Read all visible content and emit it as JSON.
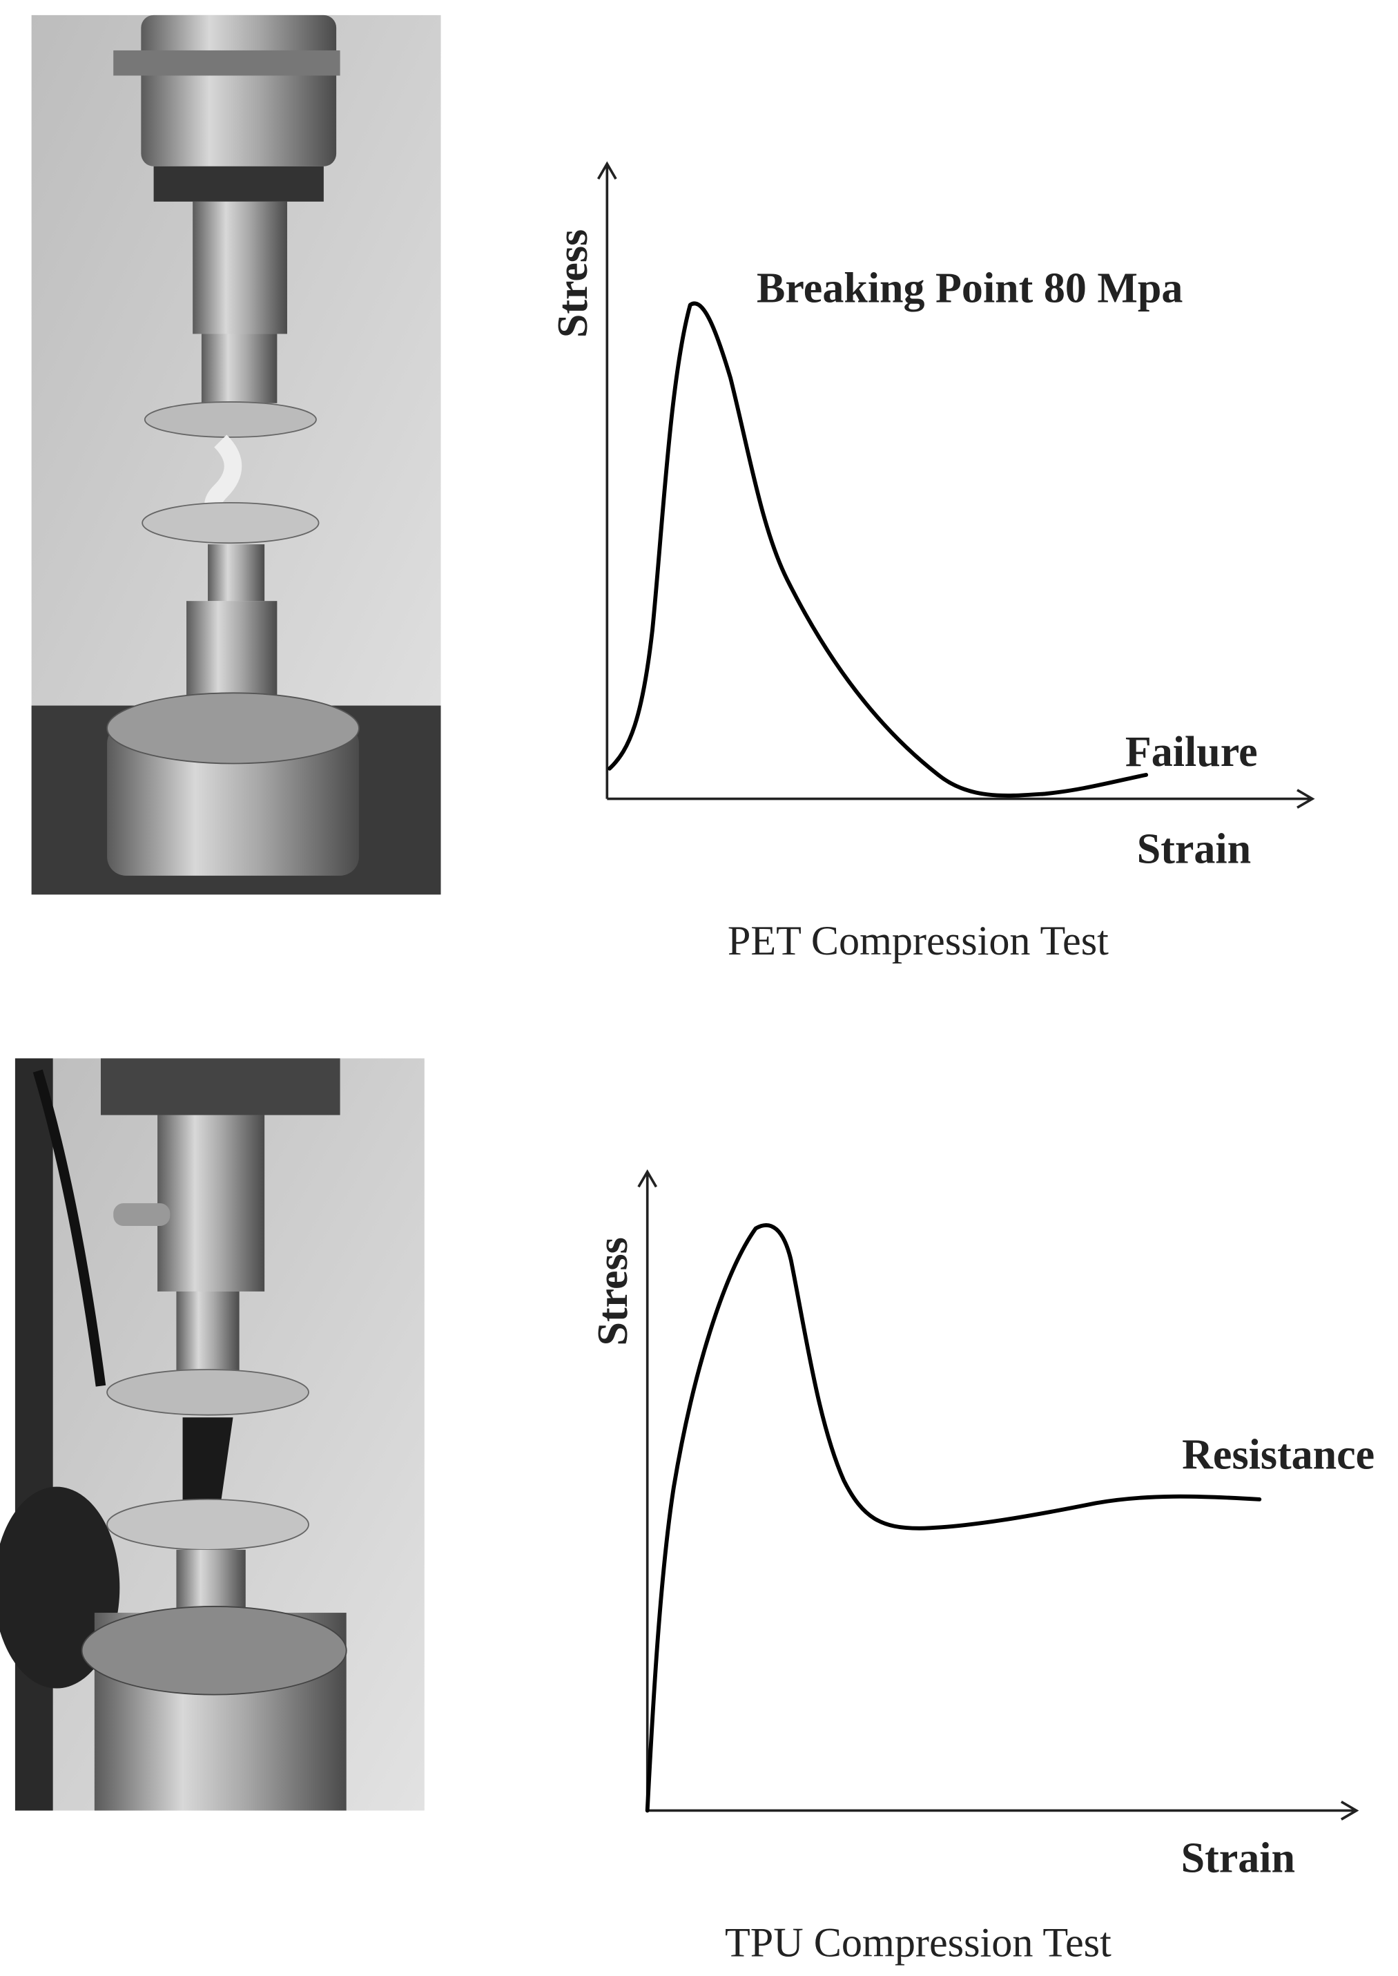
{
  "panels": [
    {
      "y_label": "Stress",
      "annotations": [
        "Breaking Point 80 Mpa",
        "Failure"
      ],
      "x_label": "Strain",
      "caption": "PET Compression Test"
    },
    {
      "y_label": "Stress",
      "annotations": [
        "Resistance"
      ],
      "x_label": "Strain",
      "caption": "TPU Compression Test"
    }
  ]
}
